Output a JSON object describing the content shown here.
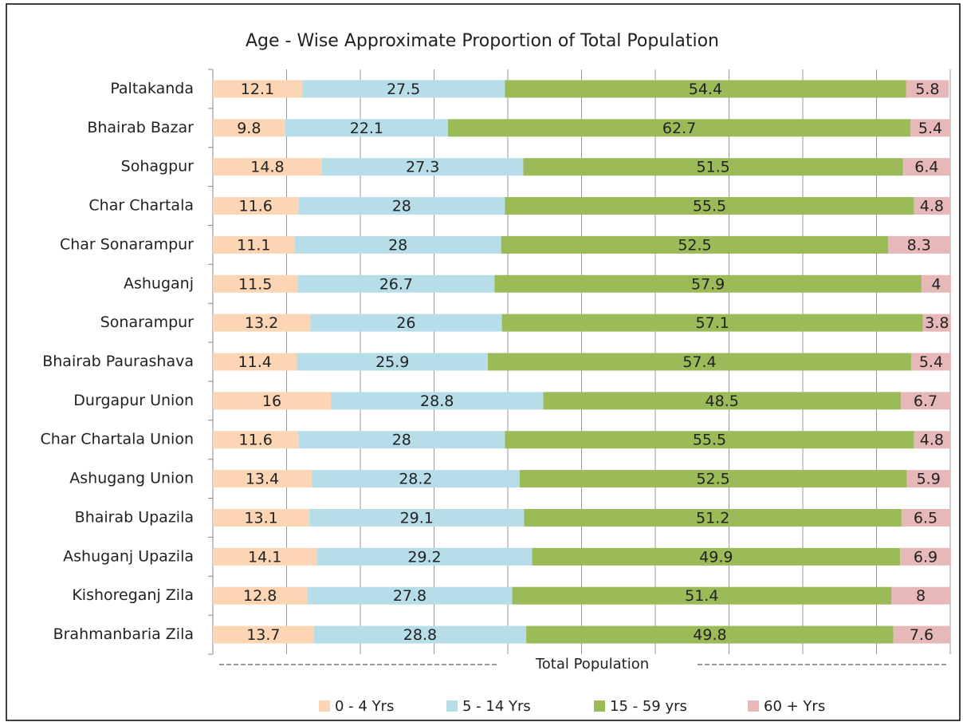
{
  "chart_data": {
    "type": "stacked_barh",
    "title": "Age - Wise Approximate Proportion of Total Population",
    "xlabel": "Total Population",
    "categories": [
      "Paltakanda",
      "Bhairab Bazar",
      "Sohagpur",
      "Char Chartala",
      "Char Sonarampur",
      "Ashuganj",
      "Sonarampur",
      "Bhairab Paurashava",
      "Durgapur Union",
      "Char Chartala Union",
      "Ashugang Union",
      "Bhairab Upazila",
      "Ashuganj Upazila",
      "Kishoreganj Zila",
      "Brahmanbaria Zila"
    ],
    "series": [
      {
        "name": "0 - 4 Yrs",
        "color": "#fcd5b5",
        "values": [
          12.1,
          9.8,
          14.8,
          11.6,
          11.1,
          11.5,
          13.2,
          11.4,
          16,
          11.6,
          13.4,
          13.1,
          14.1,
          12.8,
          13.7
        ]
      },
      {
        "name": "5 - 14 Yrs",
        "color": "#b7dee8",
        "values": [
          27.5,
          22.1,
          27.3,
          28,
          28,
          26.7,
          26,
          25.9,
          28.8,
          28,
          28.2,
          29.1,
          29.2,
          27.8,
          28.8
        ]
      },
      {
        "name": "15 - 59 yrs",
        "color": "#9bbb59",
        "values": [
          54.4,
          62.7,
          51.5,
          55.5,
          52.5,
          57.9,
          57.1,
          57.4,
          48.5,
          55.5,
          52.5,
          51.2,
          49.9,
          51.4,
          49.8
        ]
      },
      {
        "name": "60 + Yrs",
        "color": "#e6b9b8",
        "values": [
          5.8,
          5.4,
          6.4,
          4.8,
          8.3,
          4,
          3.8,
          5.4,
          6.7,
          4.8,
          5.9,
          6.5,
          6.9,
          8,
          7.6
        ]
      }
    ],
    "xlim": [
      0,
      100
    ],
    "xticks": [
      0,
      10,
      20,
      30,
      40,
      50,
      60,
      70,
      80,
      90,
      100
    ],
    "grid": true,
    "legend": "bottom"
  }
}
